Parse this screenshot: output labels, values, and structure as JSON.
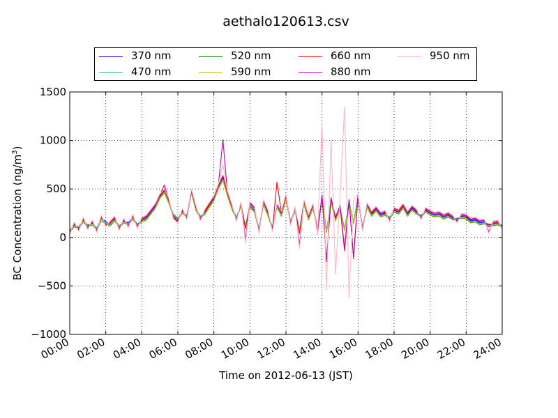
{
  "chart_data": {
    "type": "line",
    "title": "aethalo120613.csv",
    "xlabel": "Time on 2012-06-13 (JST)",
    "ylabel_main": "BC Concentration (ng/m",
    "ylabel_sup": "3",
    "ylabel_tail": ")",
    "xlim": [
      0,
      24
    ],
    "ylim": [
      -1000,
      1500
    ],
    "grid": true,
    "legend_position": "top",
    "x_ticks": [
      0,
      2,
      4,
      6,
      8,
      10,
      12,
      14,
      16,
      18,
      20,
      22,
      24
    ],
    "x_tick_labels": [
      "00:00",
      "02:00",
      "04:00",
      "06:00",
      "08:00",
      "10:00",
      "12:00",
      "14:00",
      "16:00",
      "18:00",
      "20:00",
      "22:00",
      "24:00"
    ],
    "y_ticks": [
      -1000,
      -500,
      0,
      500,
      1000,
      1500
    ],
    "y_tick_labels": [
      "−1000",
      "−500",
      "0",
      "500",
      "1000",
      "1500"
    ],
    "x": [
      0.0,
      0.25,
      0.5,
      0.75,
      1.0,
      1.25,
      1.5,
      1.75,
      2.0,
      2.25,
      2.5,
      2.75,
      3.0,
      3.25,
      3.5,
      3.75,
      4.0,
      4.25,
      4.5,
      4.75,
      5.0,
      5.25,
      5.5,
      5.75,
      6.0,
      6.25,
      6.5,
      6.75,
      7.0,
      7.25,
      7.5,
      7.75,
      8.0,
      8.25,
      8.5,
      8.75,
      9.0,
      9.25,
      9.5,
      9.75,
      10.0,
      10.25,
      10.5,
      10.75,
      11.0,
      11.25,
      11.5,
      11.75,
      12.0,
      12.25,
      12.5,
      12.75,
      13.0,
      13.25,
      13.5,
      13.75,
      14.0,
      14.25,
      14.5,
      14.75,
      15.0,
      15.25,
      15.5,
      15.75,
      16.0,
      16.25,
      16.5,
      16.75,
      17.0,
      17.25,
      17.5,
      17.75,
      18.0,
      18.25,
      18.5,
      18.75,
      19.0,
      19.25,
      19.5,
      19.75,
      20.0,
      20.25,
      20.5,
      20.75,
      21.0,
      21.25,
      21.5,
      21.75,
      22.0,
      22.25,
      22.5,
      22.75,
      23.0,
      23.25,
      23.5,
      23.75,
      24.0
    ],
    "series": [
      {
        "name": "370 nm",
        "color": "#0000ff",
        "values": [
          60,
          130,
          100,
          180,
          120,
          150,
          90,
          200,
          160,
          130,
          190,
          110,
          170,
          150,
          210,
          130,
          180,
          200,
          260,
          320,
          420,
          480,
          370,
          230,
          190,
          270,
          220,
          480,
          300,
          210,
          260,
          330,
          400,
          520,
          620,
          450,
          300,
          200,
          340,
          110,
          330,
          280,
          80,
          360,
          240,
          100,
          330,
          240,
          420,
          160,
          290,
          70,
          360,
          200,
          320,
          90,
          410,
          60,
          380,
          190,
          310,
          80,
          370,
          150,
          420,
          100,
          330,
          240,
          290,
          230,
          250,
          200,
          280,
          260,
          320,
          240,
          300,
          260,
          220,
          280,
          250,
          230,
          240,
          210,
          230,
          200,
          190,
          220,
          210,
          170,
          180,
          150,
          160,
          130,
          140,
          150,
          120
        ]
      },
      {
        "name": "470 nm",
        "color": "#20b2aa",
        "values": [
          70,
          120,
          110,
          170,
          130,
          140,
          100,
          190,
          150,
          140,
          180,
          120,
          160,
          140,
          200,
          140,
          170,
          190,
          250,
          310,
          410,
          470,
          360,
          240,
          200,
          260,
          230,
          470,
          290,
          220,
          250,
          320,
          390,
          510,
          600,
          440,
          310,
          210,
          330,
          120,
          320,
          270,
          90,
          350,
          230,
          110,
          320,
          230,
          400,
          170,
          280,
          80,
          350,
          190,
          310,
          100,
          390,
          70,
          370,
          180,
          300,
          90,
          360,
          160,
          400,
          110,
          320,
          230,
          280,
          220,
          240,
          210,
          270,
          250,
          310,
          230,
          290,
          250,
          230,
          270,
          240,
          220,
          230,
          200,
          220,
          190,
          200,
          210,
          200,
          160,
          170,
          140,
          150,
          140,
          130,
          140,
          130
        ]
      },
      {
        "name": "520 nm",
        "color": "#008000",
        "values": [
          50,
          110,
          90,
          160,
          110,
          130,
          80,
          170,
          140,
          120,
          170,
          100,
          150,
          130,
          190,
          120,
          160,
          180,
          240,
          300,
          400,
          460,
          350,
          220,
          180,
          250,
          210,
          460,
          280,
          200,
          240,
          310,
          380,
          500,
          590,
          430,
          290,
          190,
          320,
          100,
          310,
          260,
          70,
          340,
          220,
          90,
          310,
          220,
          390,
          150,
          270,
          60,
          340,
          180,
          300,
          80,
          380,
          50,
          360,
          170,
          290,
          70,
          350,
          140,
          390,
          90,
          310,
          220,
          270,
          210,
          230,
          190,
          260,
          240,
          300,
          220,
          280,
          240,
          210,
          260,
          230,
          210,
          220,
          190,
          210,
          180,
          180,
          200,
          190,
          150,
          160,
          130,
          140,
          120,
          120,
          130,
          110
        ]
      },
      {
        "name": "590 nm",
        "color": "#bfbf00",
        "values": [
          55,
          115,
          95,
          165,
          115,
          135,
          85,
          175,
          145,
          125,
          175,
          105,
          155,
          135,
          195,
          125,
          165,
          185,
          245,
          305,
          405,
          465,
          355,
          225,
          185,
          255,
          215,
          465,
          285,
          205,
          245,
          315,
          385,
          505,
          595,
          435,
          295,
          195,
          325,
          105,
          315,
          265,
          75,
          345,
          225,
          95,
          315,
          225,
          395,
          155,
          275,
          65,
          345,
          185,
          305,
          85,
          385,
          55,
          365,
          175,
          295,
          75,
          355,
          145,
          395,
          95,
          315,
          225,
          275,
          215,
          235,
          195,
          265,
          245,
          305,
          225,
          285,
          245,
          215,
          265,
          235,
          215,
          225,
          195,
          215,
          185,
          185,
          205,
          195,
          155,
          165,
          135,
          145,
          125,
          125,
          135,
          115
        ]
      },
      {
        "name": "660 nm",
        "color": "#ff0000",
        "values": [
          60,
          140,
          80,
          190,
          100,
          160,
          70,
          210,
          130,
          150,
          200,
          90,
          180,
          120,
          220,
          110,
          190,
          210,
          270,
          330,
          430,
          490,
          380,
          210,
          170,
          280,
          200,
          490,
          310,
          190,
          270,
          340,
          410,
          530,
          640,
          460,
          320,
          180,
          350,
          90,
          350,
          300,
          60,
          370,
          260,
          80,
          570,
          250,
          430,
          140,
          300,
          40,
          370,
          210,
          330,
          60,
          430,
          -250,
          400,
          200,
          320,
          -140,
          380,
          -200,
          430,
          80,
          340,
          250,
          300,
          240,
          260,
          180,
          290,
          270,
          330,
          250,
          310,
          270,
          200,
          290,
          260,
          240,
          250,
          220,
          240,
          210,
          170,
          230,
          220,
          180,
          190,
          160,
          170,
          110,
          150,
          160,
          100
        ]
      },
      {
        "name": "880 nm",
        "color": "#bf00bf",
        "values": [
          40,
          150,
          70,
          200,
          90,
          170,
          60,
          220,
          120,
          160,
          210,
          80,
          190,
          110,
          230,
          100,
          200,
          220,
          280,
          340,
          440,
          540,
          390,
          200,
          160,
          290,
          190,
          480,
          320,
          180,
          280,
          350,
          420,
          540,
          1010,
          470,
          330,
          170,
          360,
          -20,
          360,
          310,
          50,
          380,
          270,
          70,
          340,
          260,
          440,
          130,
          310,
          -80,
          380,
          220,
          340,
          40,
          440,
          -230,
          410,
          210,
          330,
          -110,
          390,
          -220,
          440,
          70,
          350,
          260,
          310,
          250,
          270,
          170,
          300,
          280,
          340,
          260,
          320,
          280,
          190,
          300,
          270,
          250,
          260,
          230,
          250,
          220,
          160,
          240,
          230,
          190,
          200,
          170,
          180,
          60,
          160,
          170,
          90
        ]
      },
      {
        "name": "950 nm",
        "color": "#ffb6c1",
        "values": [
          30,
          160,
          60,
          210,
          80,
          180,
          50,
          230,
          110,
          170,
          220,
          70,
          200,
          100,
          240,
          90,
          210,
          230,
          290,
          350,
          450,
          500,
          400,
          190,
          150,
          300,
          180,
          500,
          330,
          170,
          290,
          360,
          430,
          550,
          750,
          480,
          340,
          160,
          370,
          -60,
          370,
          320,
          40,
          390,
          280,
          60,
          350,
          270,
          450,
          120,
          320,
          -120,
          390,
          230,
          350,
          30,
          1180,
          -540,
          1000,
          -380,
          420,
          1350,
          -620,
          380,
          450,
          60,
          360,
          270,
          320,
          260,
          280,
          160,
          310,
          290,
          350,
          270,
          330,
          290,
          180,
          310,
          280,
          260,
          270,
          240,
          260,
          230,
          150,
          250,
          240,
          200,
          210,
          180,
          190,
          40,
          170,
          180,
          80
        ]
      }
    ]
  }
}
